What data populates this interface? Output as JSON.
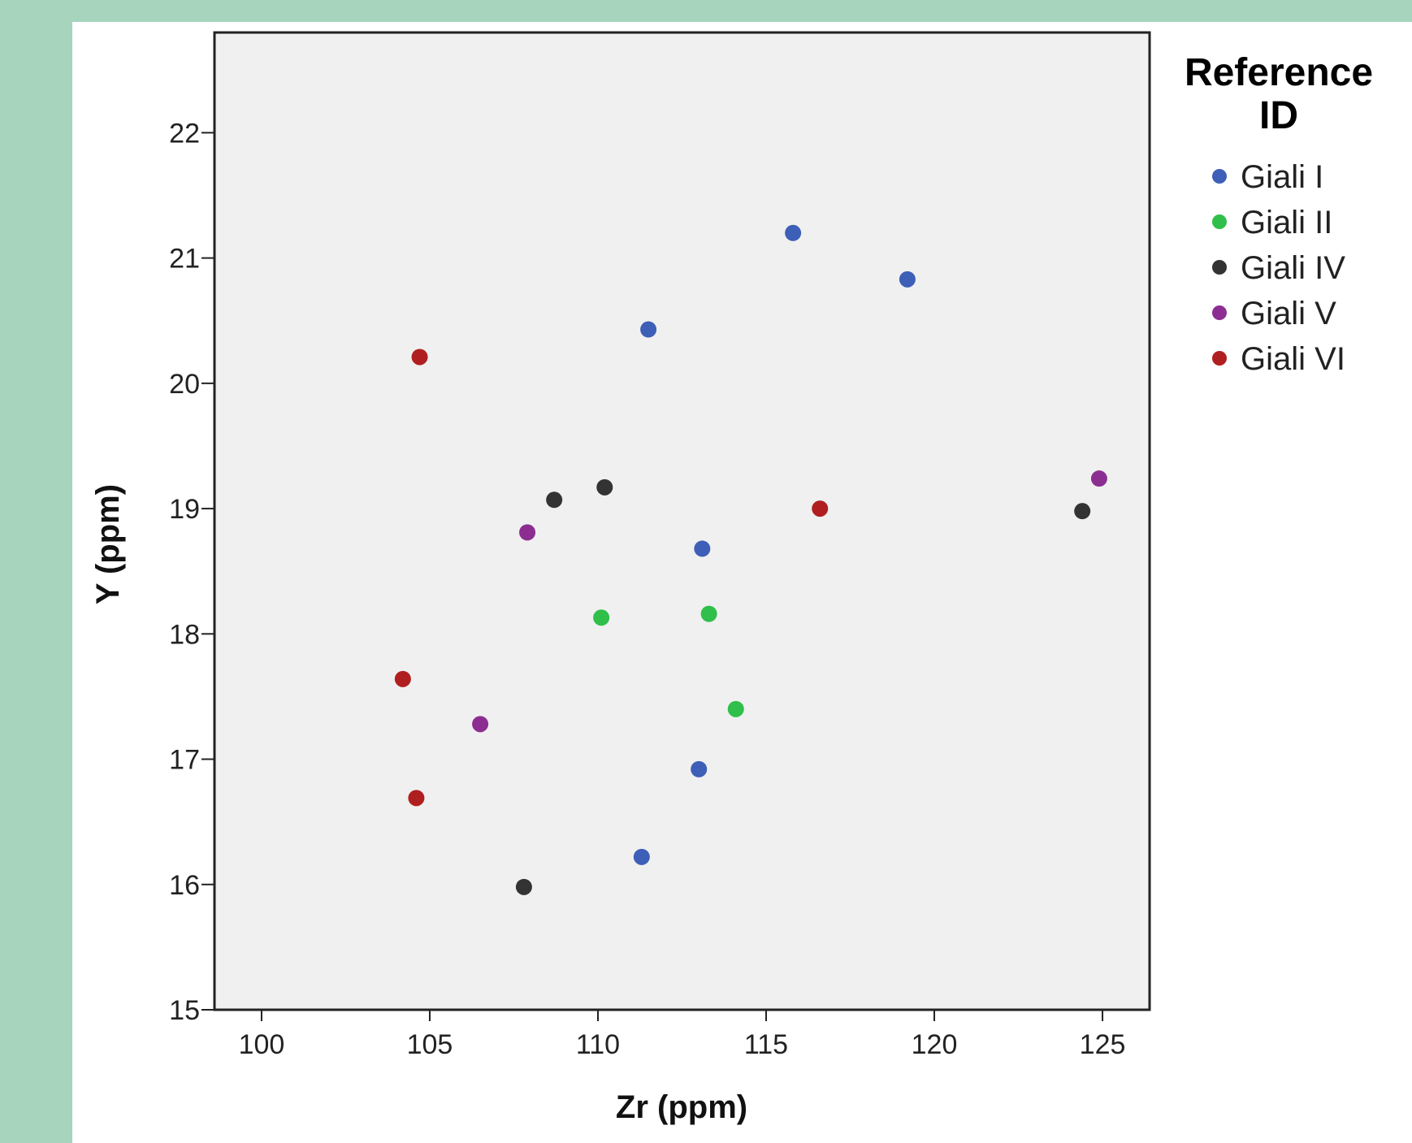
{
  "chart_data": {
    "type": "scatter",
    "title": "",
    "xlabel": "Zr (ppm)",
    "ylabel": "Y (ppm)",
    "xlim": [
      98.6,
      126.4
    ],
    "ylim": [
      15,
      22.8
    ],
    "x_ticks": [
      100,
      105,
      110,
      115,
      120,
      125
    ],
    "y_ticks": [
      15,
      16,
      17,
      18,
      19,
      20,
      21,
      22
    ],
    "grid": false,
    "legend": {
      "title": "Reference ID",
      "title_lines": [
        "Reference",
        "ID"
      ],
      "position": "right"
    },
    "colors": {
      "plot_background": "#f0f0f0",
      "page_background": "#a6d4bd"
    },
    "series": [
      {
        "name": "Giali I",
        "color": "#3e5fb8",
        "points": [
          [
            115.8,
            21.2
          ],
          [
            119.2,
            20.83
          ],
          [
            111.5,
            20.43
          ],
          [
            113.1,
            18.68
          ],
          [
            113.0,
            16.92
          ],
          [
            111.3,
            16.22
          ]
        ]
      },
      {
        "name": "Giali II",
        "color": "#2fbf4a",
        "points": [
          [
            110.1,
            18.13
          ],
          [
            113.3,
            18.16
          ],
          [
            114.1,
            17.4
          ]
        ]
      },
      {
        "name": "Giali IV",
        "color": "#333333",
        "points": [
          [
            108.7,
            19.07
          ],
          [
            110.2,
            19.17
          ],
          [
            124.4,
            18.98
          ],
          [
            107.8,
            15.98
          ]
        ]
      },
      {
        "name": "Giali V",
        "color": "#8c2e91",
        "points": [
          [
            107.9,
            18.81
          ],
          [
            124.9,
            19.24
          ],
          [
            106.5,
            17.28
          ]
        ]
      },
      {
        "name": "Giali VI",
        "color": "#b01f1f",
        "points": [
          [
            104.7,
            20.21
          ],
          [
            116.6,
            19.0
          ],
          [
            104.2,
            17.64
          ],
          [
            104.6,
            16.69
          ]
        ]
      }
    ]
  }
}
